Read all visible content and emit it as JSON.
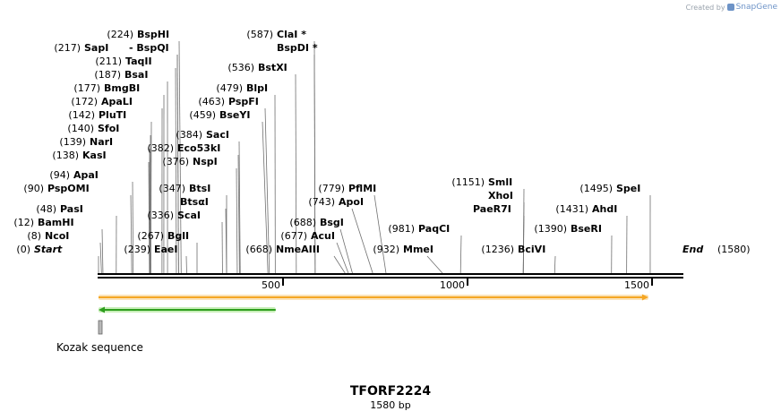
{
  "credit": {
    "prefix": "Created by",
    "brand": "SnapGene"
  },
  "title": "TFORF2224",
  "subtitle": "1580 bp",
  "sequence": {
    "length": 1580,
    "ticks": [
      500,
      1000,
      1500
    ],
    "start_label": "Start",
    "end_label": "End",
    "start_pos": "(0)",
    "end_pos": "(1580)"
  },
  "sites": [
    {
      "pos": 0,
      "num": "(0)",
      "name": "Start",
      "italic": true
    },
    {
      "pos": 8,
      "num": "(8)",
      "name": "NcoI"
    },
    {
      "pos": 12,
      "num": "(12)",
      "name": "BamHI"
    },
    {
      "pos": 48,
      "num": "(48)",
      "name": "PasI"
    },
    {
      "pos": 90,
      "num": "(90)",
      "name": "PspOMI"
    },
    {
      "pos": 94,
      "num": "(94)",
      "name": "ApaI"
    },
    {
      "pos": 138,
      "num": "(138)",
      "name": "KasI"
    },
    {
      "pos": 139,
      "num": "(139)",
      "name": "NarI"
    },
    {
      "pos": 140,
      "num": "(140)",
      "name": "SfoI"
    },
    {
      "pos": 142,
      "num": "(142)",
      "name": "PluTI"
    },
    {
      "pos": 172,
      "num": "(172)",
      "name": "ApaLI"
    },
    {
      "pos": 177,
      "num": "(177)",
      "name": "BmgBI"
    },
    {
      "pos": 187,
      "num": "(187)",
      "name": "BsaI"
    },
    {
      "pos": 211,
      "num": "(211)",
      "name": "TaqII"
    },
    {
      "pos": 217,
      "num": "(217)",
      "name": "SapI"
    },
    {
      "pos": 217,
      "num": "",
      "name": "BspQI",
      "prefix": "- "
    },
    {
      "pos": 224,
      "num": "(224)",
      "name": "BspHI"
    },
    {
      "pos": 239,
      "num": "(239)",
      "name": "EaeI"
    },
    {
      "pos": 267,
      "num": "(267)",
      "name": "BglI"
    },
    {
      "pos": 336,
      "num": "(336)",
      "name": "ScaI"
    },
    {
      "pos": 347,
      "num": "",
      "name": "BtsαI"
    },
    {
      "pos": 347,
      "num": "(347)",
      "name": "BtsI"
    },
    {
      "pos": 376,
      "num": "(376)",
      "name": "NspI"
    },
    {
      "pos": 382,
      "num": "(382)",
      "name": "Eco53kI"
    },
    {
      "pos": 384,
      "num": "(384)",
      "name": "SacI"
    },
    {
      "pos": 459,
      "num": "(459)",
      "name": "BseYI"
    },
    {
      "pos": 463,
      "num": "(463)",
      "name": "PspFI"
    },
    {
      "pos": 479,
      "num": "(479)",
      "name": "BlpI"
    },
    {
      "pos": 536,
      "num": "(536)",
      "name": "BstXI"
    },
    {
      "pos": 587,
      "num": "(587)",
      "name": "ClaI *"
    },
    {
      "pos": 587,
      "num": "",
      "name": "BspDI *"
    },
    {
      "pos": 668,
      "num": "(668)",
      "name": "NmeAIII"
    },
    {
      "pos": 677,
      "num": "(677)",
      "name": "AcuI"
    },
    {
      "pos": 688,
      "num": "(688)",
      "name": "BsgI"
    },
    {
      "pos": 743,
      "num": "(743)",
      "name": "ApoI"
    },
    {
      "pos": 779,
      "num": "(779)",
      "name": "PflMI"
    },
    {
      "pos": 932,
      "num": "(932)",
      "name": "MmeI"
    },
    {
      "pos": 981,
      "num": "(981)",
      "name": "PaqCI"
    },
    {
      "pos": 1151,
      "num": "(1151)",
      "name": "SmlI"
    },
    {
      "pos": 1151,
      "num": "",
      "name": "XhoI"
    },
    {
      "pos": 1151,
      "num": "",
      "name": "PaeR7I"
    },
    {
      "pos": 1236,
      "num": "(1236)",
      "name": "BciVI"
    },
    {
      "pos": 1390,
      "num": "(1390)",
      "name": "BseRI"
    },
    {
      "pos": 1431,
      "num": "(1431)",
      "name": "AhdI"
    },
    {
      "pos": 1495,
      "num": "(1495)",
      "name": "SpeI"
    },
    {
      "pos": 1580,
      "num": "(1580)",
      "name": "End",
      "italic": true
    }
  ],
  "features": [
    {
      "name": "orf",
      "start": 0,
      "end": 1490,
      "direction": "forward",
      "color": "#f5a623"
    },
    {
      "name": "green-feature",
      "start": 0,
      "end": 480,
      "direction": "reverse",
      "color": "#2e9e1e"
    },
    {
      "name": "Kozak sequence",
      "start": 0,
      "end": 10,
      "label": "Kozak sequence",
      "color": "#9e9e9e"
    }
  ]
}
